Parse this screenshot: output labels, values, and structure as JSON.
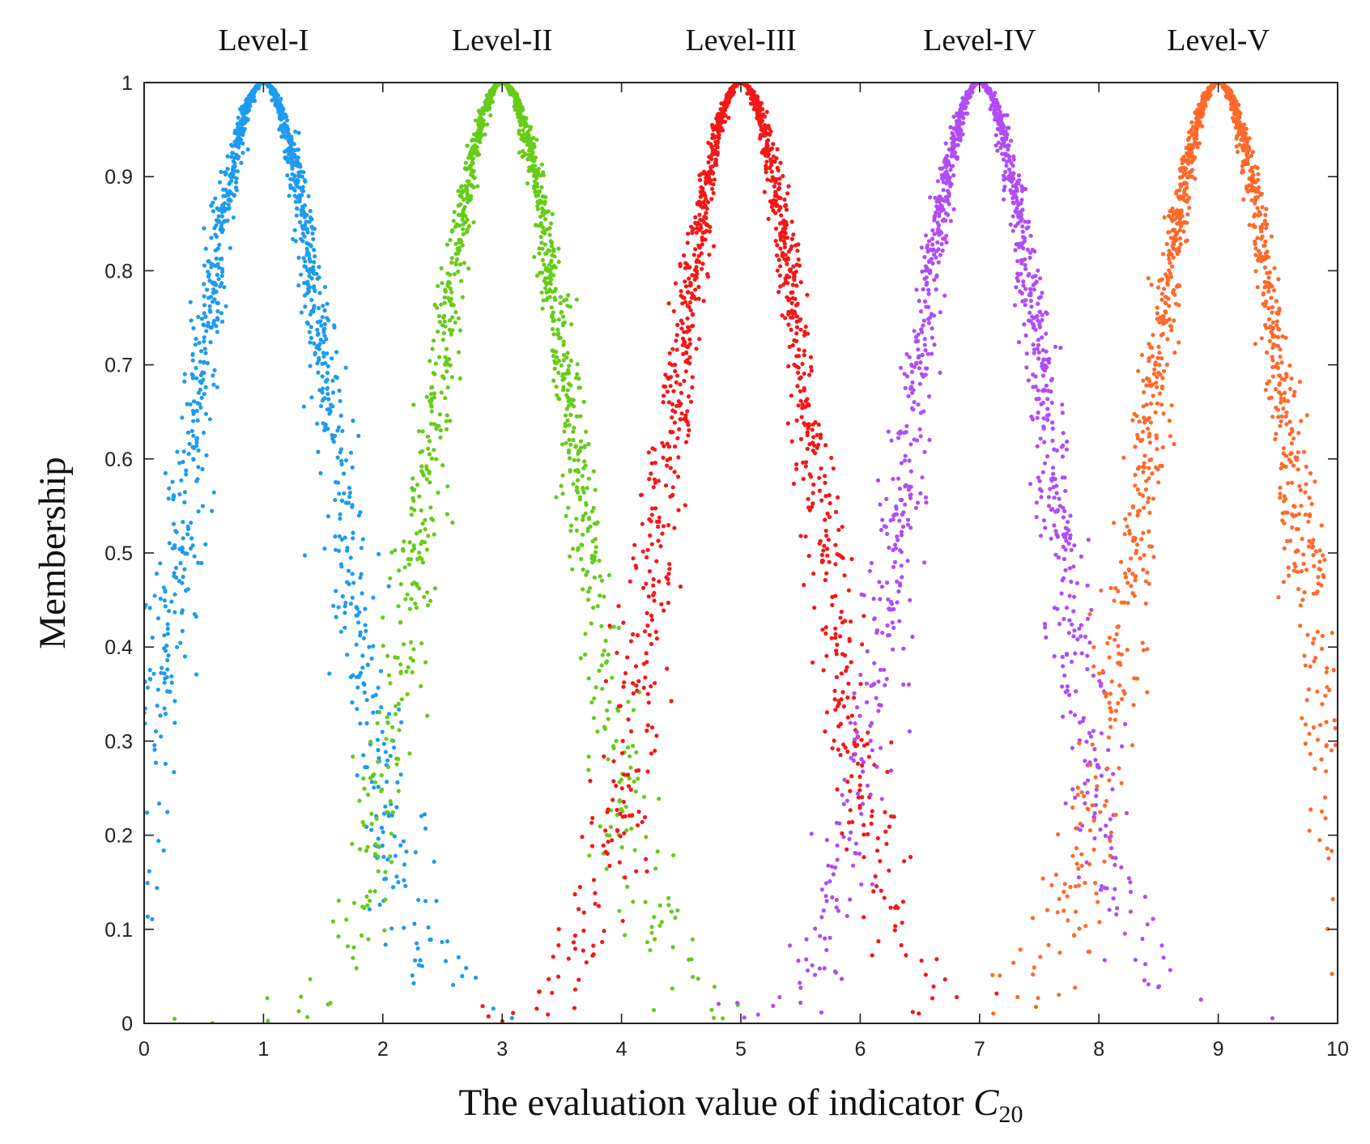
{
  "chart_data": {
    "type": "scatter",
    "title": "",
    "xlabel": "The evaluation value of indicator ",
    "xlabel_var": "C",
    "xlabel_sub": "20",
    "ylabel": "Membership",
    "xlim": [
      0,
      10
    ],
    "ylim": [
      0,
      1
    ],
    "xticks": [
      0,
      1,
      2,
      3,
      4,
      5,
      6,
      7,
      8,
      9,
      10
    ],
    "yticks": [
      0,
      0.1,
      0.2,
      0.3,
      0.4,
      0.5,
      0.6,
      0.7,
      0.8,
      0.9,
      1
    ],
    "xtick_labels": [
      "0",
      "1",
      "2",
      "3",
      "4",
      "5",
      "6",
      "7",
      "8",
      "9",
      "10"
    ],
    "ytick_labels": [
      "0",
      "0.1",
      "0.2",
      "0.3",
      "0.4",
      "0.5",
      "0.6",
      "0.7",
      "0.8",
      "0.9",
      "1"
    ],
    "grid": false,
    "model": "normal cloud membership, y = exp(-(x-Ex)^2 / (2*En'^2)), En' ~ N(En, He)",
    "series": [
      {
        "name": "Level-I",
        "Ex": 1,
        "En": 0.6,
        "He": 0.08,
        "color": "#1E9BF0",
        "points_drawn": 1300
      },
      {
        "name": "Level-II",
        "Ex": 3,
        "En": 0.6,
        "He": 0.08,
        "color": "#66CC1A",
        "points_drawn": 1300
      },
      {
        "name": "Level-III",
        "Ex": 5,
        "En": 0.6,
        "He": 0.08,
        "color": "#F51717",
        "points_drawn": 1300
      },
      {
        "name": "Level-IV",
        "Ex": 7,
        "En": 0.6,
        "He": 0.08,
        "color": "#B04DF6",
        "points_drawn": 1300
      },
      {
        "name": "Level-V",
        "Ex": 9,
        "En": 0.6,
        "He": 0.08,
        "color": "#FF6A2B",
        "points_drawn": 1300
      }
    ]
  }
}
